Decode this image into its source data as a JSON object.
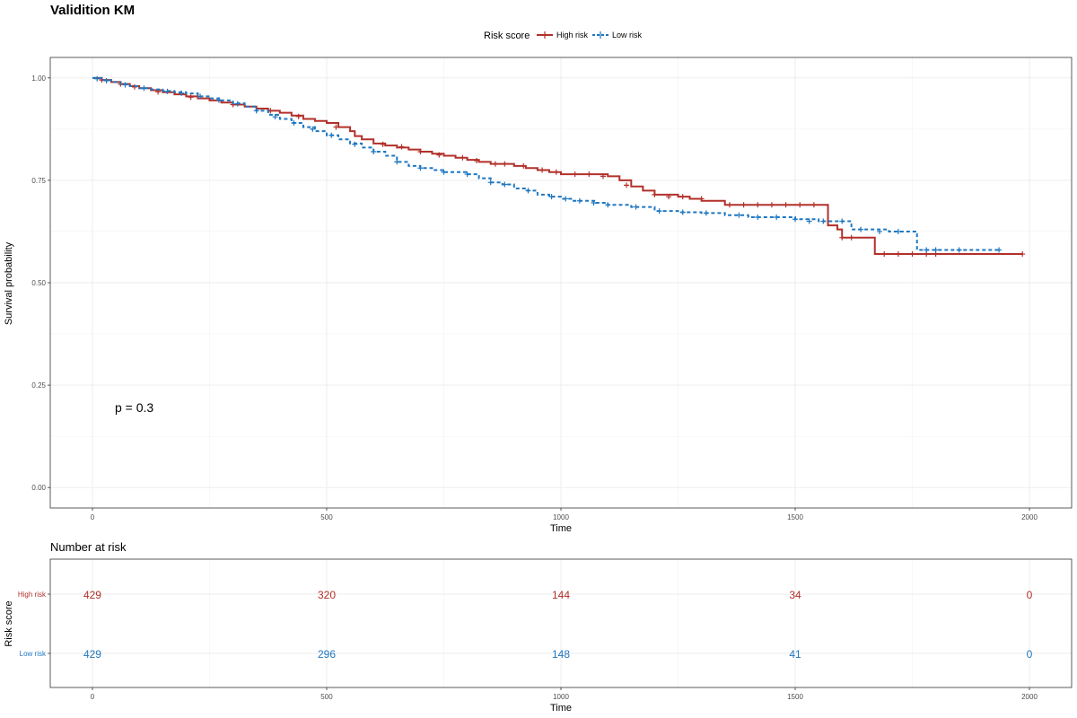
{
  "chart_data": [
    {
      "type": "line",
      "title": "Validition KM",
      "xlabel": "Time",
      "ylabel": "Survival probability",
      "xlim": [
        -90,
        2090
      ],
      "ylim": [
        -0.05,
        1.05
      ],
      "x_ticks": [
        0,
        500,
        1000,
        1500,
        2000
      ],
      "y_ticks": [
        0.0,
        0.25,
        0.5,
        0.75,
        1.0
      ],
      "y_tick_labels": [
        "0.00",
        "0.25",
        "0.50",
        "0.75",
        "1.00"
      ],
      "grid": true,
      "legend": {
        "title": "Risk score",
        "position": "top",
        "entries": [
          "High risk",
          "Low risk"
        ]
      },
      "annotation": "p = 0.3",
      "series": [
        {
          "name": "High risk",
          "color": "#B2302A",
          "style": "solid",
          "x": [
            0,
            20,
            40,
            60,
            80,
            100,
            125,
            150,
            175,
            200,
            225,
            250,
            275,
            300,
            325,
            350,
            375,
            400,
            425,
            450,
            475,
            500,
            525,
            550,
            560,
            575,
            600,
            625,
            650,
            675,
            700,
            725,
            750,
            775,
            800,
            825,
            850,
            875,
            900,
            925,
            950,
            975,
            1000,
            1050,
            1100,
            1125,
            1150,
            1175,
            1200,
            1250,
            1275,
            1300,
            1350,
            1400,
            1450,
            1500,
            1550,
            1570,
            1590,
            1600,
            1650,
            1670,
            1700,
            1800,
            1900,
            1985
          ],
          "y": [
            1.0,
            0.995,
            0.99,
            0.985,
            0.98,
            0.975,
            0.97,
            0.965,
            0.96,
            0.955,
            0.95,
            0.945,
            0.94,
            0.935,
            0.93,
            0.925,
            0.92,
            0.915,
            0.908,
            0.9,
            0.895,
            0.89,
            0.88,
            0.87,
            0.858,
            0.85,
            0.84,
            0.835,
            0.83,
            0.825,
            0.82,
            0.815,
            0.81,
            0.805,
            0.8,
            0.795,
            0.79,
            0.79,
            0.785,
            0.78,
            0.775,
            0.77,
            0.765,
            0.765,
            0.76,
            0.75,
            0.735,
            0.725,
            0.715,
            0.71,
            0.705,
            0.7,
            0.69,
            0.69,
            0.69,
            0.69,
            0.69,
            0.64,
            0.63,
            0.61,
            0.61,
            0.57,
            0.57,
            0.57,
            0.57,
            0.57
          ],
          "censor_x": [
            20,
            60,
            90,
            140,
            210,
            300,
            380,
            440,
            520,
            620,
            660,
            700,
            740,
            790,
            820,
            860,
            880,
            920,
            960,
            990,
            1030,
            1060,
            1090,
            1140,
            1200,
            1230,
            1260,
            1300,
            1360,
            1390,
            1420,
            1450,
            1480,
            1510,
            1540,
            1600,
            1620,
            1690,
            1720,
            1750,
            1780,
            1800,
            1985
          ],
          "censor_y": [
            0.995,
            0.985,
            0.978,
            0.966,
            0.953,
            0.935,
            0.92,
            0.906,
            0.88,
            0.838,
            0.832,
            0.82,
            0.812,
            0.805,
            0.798,
            0.79,
            0.79,
            0.785,
            0.775,
            0.77,
            0.765,
            0.765,
            0.76,
            0.738,
            0.715,
            0.71,
            0.71,
            0.705,
            0.69,
            0.69,
            0.69,
            0.69,
            0.69,
            0.69,
            0.69,
            0.61,
            0.61,
            0.57,
            0.57,
            0.57,
            0.57,
            0.57,
            0.57
          ]
        },
        {
          "name": "Low risk",
          "color": "#1F77C0",
          "style": "dashed",
          "x": [
            0,
            20,
            40,
            60,
            80,
            100,
            125,
            150,
            175,
            200,
            225,
            250,
            275,
            300,
            325,
            350,
            375,
            400,
            425,
            450,
            475,
            500,
            525,
            550,
            575,
            600,
            625,
            650,
            675,
            700,
            725,
            750,
            775,
            800,
            825,
            850,
            875,
            900,
            925,
            950,
            975,
            1000,
            1025,
            1050,
            1075,
            1100,
            1150,
            1200,
            1250,
            1300,
            1350,
            1400,
            1450,
            1500,
            1550,
            1600,
            1620,
            1700,
            1750,
            1760,
            1800,
            1850,
            1900,
            1935
          ],
          "y": [
            1.0,
            0.995,
            0.99,
            0.985,
            0.98,
            0.975,
            0.972,
            0.968,
            0.965,
            0.962,
            0.955,
            0.95,
            0.945,
            0.938,
            0.93,
            0.92,
            0.91,
            0.9,
            0.89,
            0.88,
            0.87,
            0.86,
            0.85,
            0.84,
            0.83,
            0.82,
            0.81,
            0.795,
            0.785,
            0.78,
            0.775,
            0.77,
            0.77,
            0.765,
            0.755,
            0.745,
            0.74,
            0.73,
            0.725,
            0.715,
            0.71,
            0.705,
            0.7,
            0.7,
            0.695,
            0.69,
            0.685,
            0.675,
            0.672,
            0.67,
            0.665,
            0.66,
            0.66,
            0.655,
            0.65,
            0.65,
            0.63,
            0.625,
            0.625,
            0.58,
            0.58,
            0.58,
            0.58,
            0.58
          ],
          "censor_x": [
            10,
            30,
            70,
            110,
            160,
            190,
            230,
            270,
            310,
            350,
            390,
            430,
            470,
            510,
            560,
            600,
            650,
            700,
            750,
            800,
            850,
            880,
            930,
            980,
            1010,
            1040,
            1070,
            1100,
            1160,
            1210,
            1260,
            1310,
            1380,
            1420,
            1460,
            1500,
            1530,
            1560,
            1600,
            1640,
            1680,
            1720,
            1780,
            1800,
            1850,
            1935
          ],
          "censor_y": [
            0.998,
            0.993,
            0.983,
            0.975,
            0.967,
            0.963,
            0.955,
            0.946,
            0.937,
            0.92,
            0.905,
            0.89,
            0.875,
            0.86,
            0.838,
            0.82,
            0.795,
            0.78,
            0.77,
            0.765,
            0.745,
            0.74,
            0.725,
            0.71,
            0.705,
            0.7,
            0.695,
            0.69,
            0.685,
            0.675,
            0.672,
            0.67,
            0.665,
            0.66,
            0.66,
            0.655,
            0.65,
            0.65,
            0.65,
            0.63,
            0.625,
            0.625,
            0.58,
            0.58,
            0.58,
            0.58
          ]
        }
      ]
    },
    {
      "type": "table",
      "title": "Number at risk",
      "xlabel": "Time",
      "ylabel": "Risk score",
      "xlim": [
        -90,
        2090
      ],
      "x_ticks": [
        0,
        500,
        1000,
        1500,
        2000
      ],
      "rows": [
        {
          "name": "High risk",
          "color": "#B2302A",
          "times": [
            0,
            500,
            1000,
            1500,
            2000
          ],
          "values": [
            429,
            320,
            144,
            34,
            0
          ]
        },
        {
          "name": "Low risk",
          "color": "#1F77C0",
          "times": [
            0,
            500,
            1000,
            1500,
            2000
          ],
          "values": [
            429,
            296,
            148,
            41,
            0
          ]
        }
      ]
    }
  ]
}
